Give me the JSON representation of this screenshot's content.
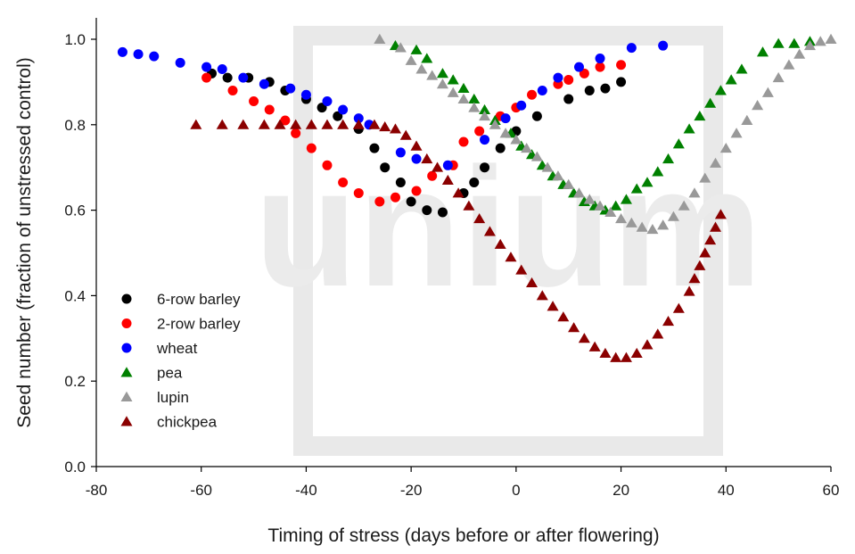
{
  "chart_data": {
    "type": "scatter",
    "title": "",
    "xlabel": "Timing of stress (days before or after flowering)",
    "ylabel": "Seed number (fraction of unstressed control)",
    "xlim": [
      -80,
      60
    ],
    "ylim": [
      0,
      1.05
    ],
    "x_ticks": [
      -80,
      -60,
      -40,
      -20,
      0,
      20,
      40,
      60
    ],
    "y_ticks": [
      0.0,
      0.2,
      0.4,
      0.6,
      0.8,
      1.0
    ],
    "x_tick_labels": [
      "-80",
      "-60",
      "-40",
      "-20",
      "0",
      "20",
      "40",
      "60"
    ],
    "y_tick_labels": [
      "0.0",
      "0.2",
      "0.4",
      "0.6",
      "0.8",
      "1.0"
    ],
    "grid": false,
    "legend_position": "lower-left",
    "watermark_text": "unium",
    "series": [
      {
        "name": "6-row barley",
        "marker": "circle",
        "color": "#000000",
        "points": [
          [
            -58,
            0.92
          ],
          [
            -55,
            0.91
          ],
          [
            -51,
            0.91
          ],
          [
            -47,
            0.9
          ],
          [
            -44,
            0.88
          ],
          [
            -40,
            0.86
          ],
          [
            -37,
            0.84
          ],
          [
            -34,
            0.82
          ],
          [
            -30,
            0.79
          ],
          [
            -27,
            0.745
          ],
          [
            -25,
            0.7
          ],
          [
            -22,
            0.665
          ],
          [
            -20,
            0.62
          ],
          [
            -17,
            0.6
          ],
          [
            -14,
            0.595
          ],
          [
            -10,
            0.64
          ],
          [
            -8,
            0.665
          ],
          [
            -6,
            0.7
          ],
          [
            -3,
            0.745
          ],
          [
            0,
            0.785
          ],
          [
            4,
            0.82
          ],
          [
            10,
            0.86
          ],
          [
            14,
            0.88
          ],
          [
            17,
            0.885
          ],
          [
            20,
            0.9
          ]
        ]
      },
      {
        "name": "2-row barley",
        "marker": "circle",
        "color": "#ff0000",
        "points": [
          [
            -59,
            0.91
          ],
          [
            -54,
            0.88
          ],
          [
            -50,
            0.855
          ],
          [
            -47,
            0.835
          ],
          [
            -44,
            0.81
          ],
          [
            -42,
            0.78
          ],
          [
            -39,
            0.745
          ],
          [
            -36,
            0.705
          ],
          [
            -33,
            0.665
          ],
          [
            -30,
            0.64
          ],
          [
            -26,
            0.62
          ],
          [
            -23,
            0.63
          ],
          [
            -19,
            0.645
          ],
          [
            -16,
            0.68
          ],
          [
            -12,
            0.705
          ],
          [
            -10,
            0.76
          ],
          [
            -7,
            0.785
          ],
          [
            -3,
            0.82
          ],
          [
            0,
            0.84
          ],
          [
            3,
            0.87
          ],
          [
            8,
            0.895
          ],
          [
            10,
            0.905
          ],
          [
            13,
            0.92
          ],
          [
            16,
            0.935
          ],
          [
            20,
            0.94
          ]
        ]
      },
      {
        "name": "wheat",
        "marker": "circle",
        "color": "#0000ff",
        "points": [
          [
            -75,
            0.97
          ],
          [
            -72,
            0.965
          ],
          [
            -69,
            0.96
          ],
          [
            -64,
            0.945
          ],
          [
            -59,
            0.935
          ],
          [
            -56,
            0.93
          ],
          [
            -52,
            0.91
          ],
          [
            -48,
            0.895
          ],
          [
            -43,
            0.885
          ],
          [
            -40,
            0.87
          ],
          [
            -36,
            0.855
          ],
          [
            -33,
            0.835
          ],
          [
            -30,
            0.815
          ],
          [
            -28,
            0.8
          ],
          [
            -22,
            0.735
          ],
          [
            -19,
            0.72
          ],
          [
            -13,
            0.705
          ],
          [
            -6,
            0.765
          ],
          [
            -2,
            0.815
          ],
          [
            1,
            0.845
          ],
          [
            5,
            0.88
          ],
          [
            8,
            0.91
          ],
          [
            12,
            0.935
          ],
          [
            16,
            0.955
          ],
          [
            22,
            0.98
          ],
          [
            28,
            0.985
          ]
        ]
      },
      {
        "name": "pea",
        "marker": "triangle",
        "color": "#008000",
        "points": [
          [
            -23,
            0.985
          ],
          [
            -19,
            0.975
          ],
          [
            -17,
            0.955
          ],
          [
            -14,
            0.92
          ],
          [
            -12,
            0.905
          ],
          [
            -10,
            0.885
          ],
          [
            -8,
            0.86
          ],
          [
            -6,
            0.835
          ],
          [
            -4,
            0.81
          ],
          [
            -1,
            0.78
          ],
          [
            1,
            0.75
          ],
          [
            3,
            0.73
          ],
          [
            5,
            0.705
          ],
          [
            7,
            0.68
          ],
          [
            9,
            0.66
          ],
          [
            11,
            0.64
          ],
          [
            13,
            0.62
          ],
          [
            15,
            0.61
          ],
          [
            17,
            0.6
          ],
          [
            19,
            0.61
          ],
          [
            21,
            0.625
          ],
          [
            23,
            0.65
          ],
          [
            25,
            0.665
          ],
          [
            27,
            0.69
          ],
          [
            29,
            0.72
          ],
          [
            31,
            0.755
          ],
          [
            33,
            0.79
          ],
          [
            35,
            0.82
          ],
          [
            37,
            0.85
          ],
          [
            39,
            0.88
          ],
          [
            41,
            0.905
          ],
          [
            43,
            0.93
          ],
          [
            47,
            0.97
          ],
          [
            50,
            0.99
          ],
          [
            53,
            0.99
          ],
          [
            56,
            0.995
          ]
        ]
      },
      {
        "name": "lupin",
        "marker": "triangle",
        "color": "#999999",
        "points": [
          [
            -26,
            1.0
          ],
          [
            -22,
            0.98
          ],
          [
            -20,
            0.95
          ],
          [
            -18,
            0.93
          ],
          [
            -16,
            0.915
          ],
          [
            -14,
            0.895
          ],
          [
            -12,
            0.875
          ],
          [
            -10,
            0.86
          ],
          [
            -8,
            0.84
          ],
          [
            -6,
            0.82
          ],
          [
            -4,
            0.8
          ],
          [
            -2,
            0.78
          ],
          [
            0,
            0.765
          ],
          [
            2,
            0.745
          ],
          [
            4,
            0.725
          ],
          [
            6,
            0.7
          ],
          [
            8,
            0.68
          ],
          [
            10,
            0.66
          ],
          [
            12,
            0.64
          ],
          [
            14,
            0.625
          ],
          [
            16,
            0.61
          ],
          [
            18,
            0.595
          ],
          [
            20,
            0.58
          ],
          [
            22,
            0.57
          ],
          [
            24,
            0.56
          ],
          [
            26,
            0.555
          ],
          [
            28,
            0.565
          ],
          [
            30,
            0.585
          ],
          [
            32,
            0.61
          ],
          [
            34,
            0.64
          ],
          [
            36,
            0.675
          ],
          [
            38,
            0.71
          ],
          [
            40,
            0.745
          ],
          [
            42,
            0.78
          ],
          [
            44,
            0.81
          ],
          [
            46,
            0.845
          ],
          [
            48,
            0.875
          ],
          [
            50,
            0.91
          ],
          [
            52,
            0.94
          ],
          [
            54,
            0.965
          ],
          [
            56,
            0.985
          ],
          [
            58,
            0.995
          ],
          [
            60,
            1.0
          ]
        ]
      },
      {
        "name": "chickpea",
        "marker": "triangle",
        "color": "#8b0000",
        "points": [
          [
            -61,
            0.8
          ],
          [
            -56,
            0.8
          ],
          [
            -52,
            0.8
          ],
          [
            -48,
            0.8
          ],
          [
            -45,
            0.8
          ],
          [
            -42,
            0.8
          ],
          [
            -39,
            0.8
          ],
          [
            -36,
            0.8
          ],
          [
            -33,
            0.8
          ],
          [
            -30,
            0.8
          ],
          [
            -27,
            0.8
          ],
          [
            -25,
            0.795
          ],
          [
            -23,
            0.79
          ],
          [
            -21,
            0.775
          ],
          [
            -19,
            0.75
          ],
          [
            -17,
            0.72
          ],
          [
            -15,
            0.7
          ],
          [
            -13,
            0.67
          ],
          [
            -11,
            0.64
          ],
          [
            -9,
            0.61
          ],
          [
            -7,
            0.58
          ],
          [
            -5,
            0.55
          ],
          [
            -3,
            0.52
          ],
          [
            -1,
            0.49
          ],
          [
            1,
            0.46
          ],
          [
            3,
            0.43
          ],
          [
            5,
            0.4
          ],
          [
            7,
            0.375
          ],
          [
            9,
            0.35
          ],
          [
            11,
            0.325
          ],
          [
            13,
            0.3
          ],
          [
            15,
            0.28
          ],
          [
            17,
            0.265
          ],
          [
            19,
            0.255
          ],
          [
            21,
            0.255
          ],
          [
            23,
            0.265
          ],
          [
            25,
            0.285
          ],
          [
            27,
            0.31
          ],
          [
            29,
            0.34
          ],
          [
            31,
            0.37
          ],
          [
            33,
            0.41
          ],
          [
            34,
            0.44
          ],
          [
            35,
            0.47
          ],
          [
            36,
            0.5
          ],
          [
            37,
            0.53
          ],
          [
            38,
            0.56
          ],
          [
            39,
            0.59
          ]
        ]
      }
    ]
  }
}
